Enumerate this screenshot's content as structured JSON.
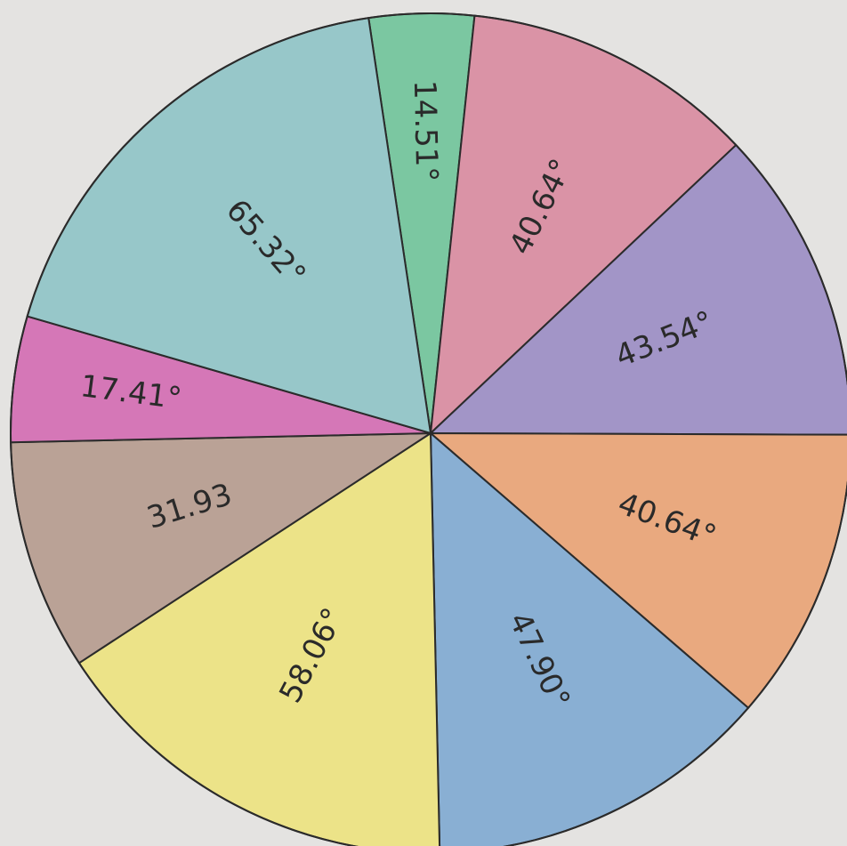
{
  "chart_data": {
    "type": "pie",
    "values": [
      14.51,
      40.64,
      43.54,
      40.64,
      47.9,
      58.06,
      31.93,
      17.41,
      65.32
    ],
    "value_labels": [
      "14.51°",
      "40.64°",
      "43.54°",
      "40.64°",
      "47.90°",
      "58.06°",
      "31.93",
      "17.41°",
      "65.32°"
    ],
    "colors": [
      "#6fc39a",
      "#d88aa0",
      "#9a8cc4",
      "#e9a274",
      "#7ea9d2",
      "#ece27e",
      "#b59a8e",
      "#d36ab2",
      "#8ec3c6"
    ]
  }
}
